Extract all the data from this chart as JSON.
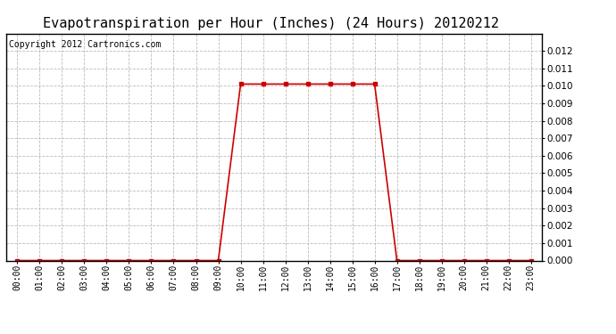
{
  "title": "Evapotranspiration per Hour (Inches) (24 Hours) 20120212",
  "copyright_text": "Copyright 2012 Cartronics.com",
  "hours": [
    "00:00",
    "01:00",
    "02:00",
    "03:00",
    "04:00",
    "05:00",
    "06:00",
    "07:00",
    "08:00",
    "09:00",
    "10:00",
    "11:00",
    "12:00",
    "13:00",
    "14:00",
    "15:00",
    "16:00",
    "17:00",
    "18:00",
    "19:00",
    "20:00",
    "21:00",
    "22:00",
    "23:00"
  ],
  "values": [
    0.0,
    0.0,
    0.0,
    0.0,
    0.0,
    0.0,
    0.0,
    0.0,
    0.0,
    0.0,
    0.0101,
    0.0101,
    0.0101,
    0.0101,
    0.0101,
    0.0101,
    0.0101,
    0.0,
    0.0,
    0.0,
    0.0,
    0.0,
    0.0,
    0.0
  ],
  "line_color": "#cc0000",
  "marker": "s",
  "marker_size": 2.5,
  "line_width": 1.2,
  "ylim": [
    0.0,
    0.013
  ],
  "yticks": [
    0.0,
    0.001,
    0.002,
    0.003,
    0.004,
    0.005,
    0.006,
    0.007,
    0.008,
    0.009,
    0.01,
    0.011,
    0.012
  ],
  "background_color": "#ffffff",
  "grid_color": "#bbbbbb",
  "title_fontsize": 11,
  "copyright_fontsize": 7,
  "tick_fontsize": 7,
  "ytick_fontsize": 7.5
}
